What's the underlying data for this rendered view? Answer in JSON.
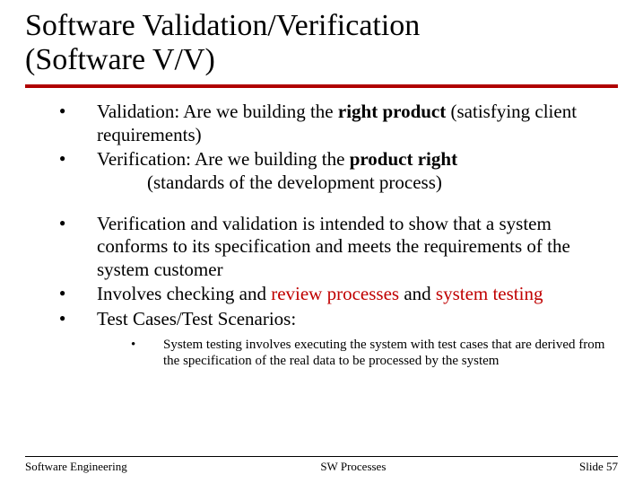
{
  "colors": {
    "title_rule": "#b00000",
    "highlight": "#c00000",
    "text": "#000000",
    "background": "#ffffff"
  },
  "title": {
    "line1": "Software Validation/Verification",
    "line2": "(Software V/V)"
  },
  "bullets": [
    {
      "segments": [
        {
          "text": "Validation: Are we building the ",
          "bold": false,
          "highlight": false
        },
        {
          "text": "right product",
          "bold": true,
          "highlight": false
        },
        {
          "text": " (satisfying client requirements)",
          "bold": false,
          "highlight": false
        }
      ]
    },
    {
      "segments": [
        {
          "text": "Verification: Are we building the ",
          "bold": false,
          "highlight": false
        },
        {
          "text": "product right",
          "bold": true,
          "highlight": false
        }
      ],
      "continuation": "(standards of the development process)"
    },
    {
      "gap": true
    },
    {
      "segments": [
        {
          "text": "Verification and validation is intended to show that a system conforms to its specification and meets the requirements of the system customer",
          "bold": false,
          "highlight": false
        }
      ]
    },
    {
      "segments": [
        {
          "text": "Involves checking and ",
          "bold": false,
          "highlight": false
        },
        {
          "text": "review processes",
          "bold": false,
          "highlight": true
        },
        {
          "text": " and ",
          "bold": false,
          "highlight": false
        },
        {
          "text": "system testing",
          "bold": false,
          "highlight": true
        }
      ]
    },
    {
      "segments": [
        {
          "text": "Test Cases/Test Scenarios:",
          "bold": false,
          "highlight": false
        }
      ]
    }
  ],
  "sub_bullets": [
    {
      "text": "System testing involves executing the system with test cases that are derived from the specification of the real data to be processed by the system"
    }
  ],
  "footer": {
    "left": "Software Engineering",
    "center": "SW Processes",
    "right": "Slide 57"
  }
}
